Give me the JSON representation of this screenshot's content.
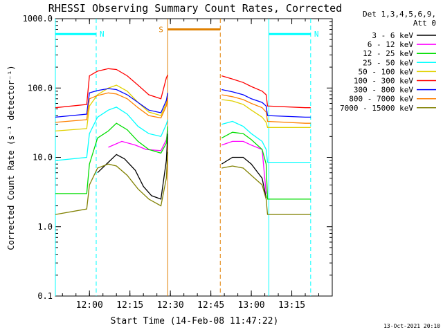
{
  "chart_data": {
    "type": "line",
    "title": "RHESSI Observing Summary Count Rates, Corrected",
    "xlabel": "Start Time (14-Feb-08 11:47:22)",
    "ylabel": "Corrected Count Rate (s⁻¹ detector⁻¹)",
    "y_scale": "log",
    "ylim": [
      0.1,
      1000
    ],
    "y_ticks": [
      "0.1",
      "1.0",
      "10.0",
      "100.0",
      "1000.0"
    ],
    "y_tick_values": [
      0.1,
      1,
      10,
      100,
      1000
    ],
    "xlim": [
      "11:47:22",
      "13:30:00"
    ],
    "x_ticks": [
      "12:00",
      "12:15",
      "12:30",
      "12:45",
      "13:00",
      "13:15"
    ],
    "legend_header": [
      "Det 1,3,4,5,6,9,",
      "Att 0"
    ],
    "legend_position": "right",
    "footer_date": "13-Oct-2021 20:10",
    "series": [
      {
        "name": "3 - 6 keV",
        "color": "#000000",
        "x": [
          "11:47:22",
          "11:59:00",
          "12:03:00",
          "12:07:00",
          "12:10:00",
          "12:13:00",
          "12:17:00",
          "12:20:00",
          "12:23:00",
          "12:26:30",
          "12:28:30",
          "12:29:00",
          "12:49:00",
          "12:53:00",
          "12:57:00",
          "13:00:00",
          "13:04:00",
          "13:05:30"
        ],
        "values": [
          null,
          null,
          6,
          8.5,
          11,
          9.5,
          6.5,
          3.8,
          2.8,
          2.5,
          9,
          22,
          8,
          10,
          10,
          8,
          5,
          2.6
        ]
      },
      {
        "name": "6 - 12 keV",
        "color": "#ff00ff",
        "x": [
          "12:07:00",
          "12:12:00",
          "12:17:00",
          "12:21:00",
          "12:26:30",
          "12:28:30",
          "12:29:00",
          "12:49:00",
          "12:53:00",
          "12:57:00",
          "13:00:00",
          "13:04:00",
          "13:05:30"
        ],
        "values": [
          14,
          17,
          15,
          13,
          12.5,
          18,
          24,
          15,
          17,
          17,
          15,
          13,
          3
        ]
      },
      {
        "name": "12 - 25 keV",
        "color": "#00dd00",
        "x": [
          "11:47:22",
          "11:59:00",
          "12:00:00",
          "12:03:00",
          "12:07:00",
          "12:10:00",
          "12:14:00",
          "12:18:00",
          "12:22:00",
          "12:26:30",
          "12:28:30",
          "12:29:00",
          "12:49:00",
          "12:53:00",
          "12:57:00",
          "13:00:00",
          "13:04:00",
          "13:05:30",
          "13:06:00",
          "13:20:00",
          "13:22:00"
        ],
        "values": [
          3,
          3,
          8,
          19,
          24,
          31,
          25,
          17,
          13,
          11.5,
          16,
          28,
          19,
          23,
          22,
          18,
          13,
          8,
          2.5,
          2.5,
          2.5
        ]
      },
      {
        "name": "25 - 50 keV",
        "color": "#00ffff",
        "x": [
          "11:47:22",
          "11:59:00",
          "12:00:00",
          "12:03:00",
          "12:07:00",
          "12:10:00",
          "12:14:00",
          "12:18:00",
          "12:22:00",
          "12:26:30",
          "12:28:30",
          "12:29:00",
          "12:49:00",
          "12:53:00",
          "12:57:00",
          "13:00:00",
          "13:04:00",
          "13:05:30",
          "13:06:00",
          "13:20:00",
          "13:22:00"
        ],
        "values": [
          9,
          10,
          22,
          38,
          48,
          53,
          42,
          28,
          22,
          20,
          30,
          35,
          30,
          33,
          28,
          22,
          17,
          13,
          8.5,
          8.5,
          8.5
        ]
      },
      {
        "name": "50 - 100 keV",
        "color": "#e0d000",
        "x": [
          "11:47:22",
          "11:59:00",
          "12:00:00",
          "12:03:00",
          "12:07:00",
          "12:10:00",
          "12:14:00",
          "12:18:00",
          "12:22:00",
          "12:26:30",
          "12:28:30",
          "12:29:00",
          "12:49:00",
          "12:53:00",
          "12:57:00",
          "13:00:00",
          "13:04:00",
          "13:05:30",
          "13:06:00",
          "13:20:00",
          "13:22:00"
        ],
        "values": [
          24,
          26,
          55,
          80,
          100,
          110,
          90,
          62,
          45,
          40,
          60,
          85,
          68,
          65,
          58,
          48,
          38,
          32,
          27,
          27,
          27
        ]
      },
      {
        "name": "100 - 300 keV",
        "color": "#ff0000",
        "x": [
          "11:47:22",
          "11:59:00",
          "12:00:00",
          "12:03:00",
          "12:07:00",
          "12:10:00",
          "12:14:00",
          "12:18:00",
          "12:22:00",
          "12:26:30",
          "12:28:30",
          "12:29:00",
          "12:49:00",
          "12:53:00",
          "12:57:00",
          "13:00:00",
          "13:04:00",
          "13:05:30",
          "13:06:00",
          "13:20:00",
          "13:22:00"
        ],
        "values": [
          52,
          58,
          150,
          175,
          190,
          185,
          150,
          110,
          80,
          70,
          140,
          155,
          150,
          135,
          120,
          105,
          90,
          80,
          55,
          52,
          52
        ]
      },
      {
        "name": "300 - 800 keV",
        "color": "#0000ff",
        "x": [
          "11:47:22",
          "11:59:00",
          "12:00:00",
          "12:03:00",
          "12:07:00",
          "12:10:00",
          "12:14:00",
          "12:18:00",
          "12:22:00",
          "12:26:30",
          "12:28:30",
          "12:29:00",
          "12:49:00",
          "12:53:00",
          "12:57:00",
          "13:00:00",
          "13:04:00",
          "13:05:30",
          "13:06:00",
          "13:20:00",
          "13:22:00"
        ],
        "values": [
          38,
          42,
          85,
          92,
          98,
          95,
          80,
          62,
          48,
          44,
          66,
          85,
          95,
          88,
          80,
          70,
          62,
          55,
          40,
          38,
          38
        ]
      },
      {
        "name": "800 - 7000 keV",
        "color": "#ff8000",
        "x": [
          "11:47:22",
          "11:59:00",
          "12:00:00",
          "12:03:00",
          "12:07:00",
          "12:10:00",
          "12:14:00",
          "12:18:00",
          "12:22:00",
          "12:26:30",
          "12:28:30",
          "12:29:00",
          "12:49:00",
          "12:53:00",
          "12:57:00",
          "13:00:00",
          "13:04:00",
          "13:05:30",
          "13:06:00",
          "13:20:00",
          "13:22:00"
        ],
        "values": [
          32,
          35,
          70,
          78,
          85,
          82,
          70,
          52,
          40,
          37,
          55,
          72,
          80,
          75,
          68,
          60,
          52,
          45,
          33,
          31,
          31
        ]
      },
      {
        "name": "7000 - 15000 keV",
        "color": "#808000",
        "x": [
          "11:47:22",
          "11:59:00",
          "12:00:00",
          "12:03:00",
          "12:07:00",
          "12:10:00",
          "12:14:00",
          "12:18:00",
          "12:22:00",
          "12:26:30",
          "12:28:30",
          "12:29:00",
          "12:49:00",
          "12:53:00",
          "12:57:00",
          "13:00:00",
          "13:04:00",
          "13:05:30",
          "13:06:00",
          "13:20:00",
          "13:22:00"
        ],
        "values": [
          1.5,
          1.8,
          4,
          7,
          8,
          7.5,
          5.5,
          3.5,
          2.5,
          2,
          5,
          12,
          7,
          7.5,
          7,
          5.5,
          4,
          2.5,
          1.5,
          1.5,
          1.5
        ]
      }
    ],
    "annotations": [
      {
        "label": "N",
        "color": "#00ffff",
        "bar": [
          "11:47:22",
          "12:02:30"
        ],
        "bar_y": 600,
        "lines": [
          "11:47:22",
          "12:02:30"
        ]
      },
      {
        "label": "N",
        "color": "#00ffff",
        "bar": [
          "13:06:30",
          "13:22:00"
        ],
        "bar_y": 600,
        "lines": [
          "13:06:30",
          "13:22:00"
        ]
      },
      {
        "label": "S",
        "color": "#e08000",
        "bar": [
          "12:29:00",
          "12:48:30"
        ],
        "bar_y": 700,
        "lines": [
          "12:29:00",
          "12:48:30"
        ]
      }
    ]
  },
  "colors": {
    "background": "#ffffff",
    "axis": "#000000",
    "n_marker": "#00ffff",
    "s_marker": "#e08000"
  }
}
